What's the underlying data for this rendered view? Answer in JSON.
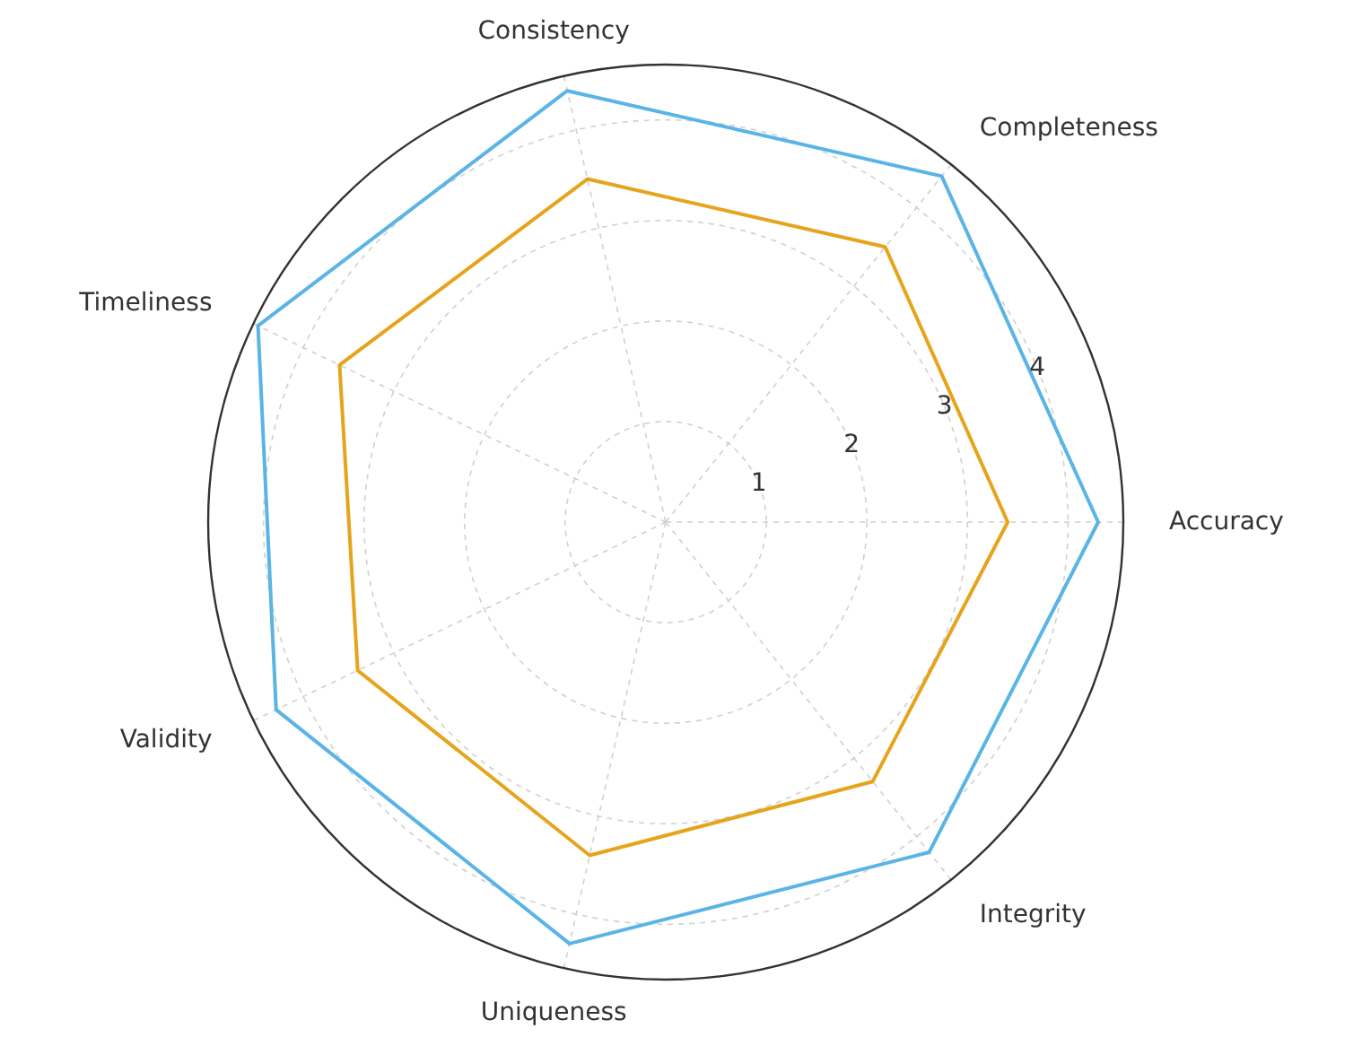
{
  "chart_data": {
    "type": "radar",
    "categories": [
      "Consistency",
      "Completeness",
      "Accuracy",
      "Integrity",
      "Uniqueness",
      "Validity",
      "Timeliness"
    ],
    "ylim": [
      0,
      4.55
    ],
    "yticks": [
      1,
      2,
      3,
      4
    ],
    "grid": true,
    "series": [
      {
        "color": "#5ab4e5",
        "values": [
          4.4,
          4.4,
          4.3,
          4.2,
          4.3,
          4.3,
          4.5
        ]
      },
      {
        "color": "#e6a41c",
        "values": [
          3.5,
          3.5,
          3.4,
          3.3,
          3.4,
          3.4,
          3.6
        ]
      }
    ]
  }
}
